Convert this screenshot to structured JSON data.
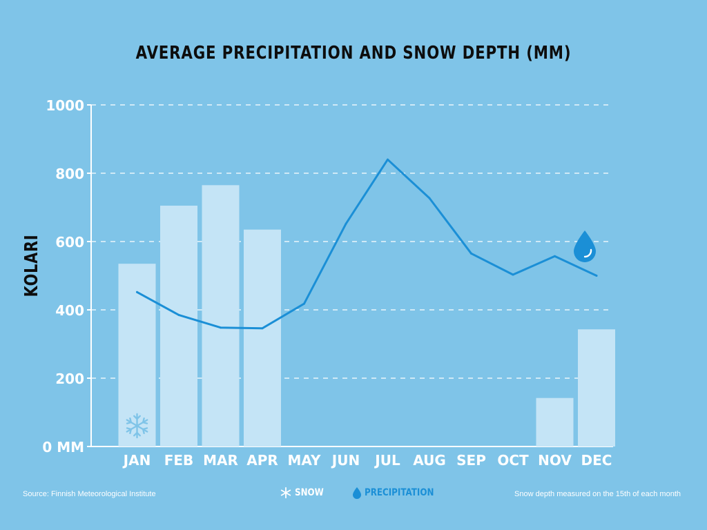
{
  "chart_data": {
    "type": "bar+line",
    "title": "AVERAGE PRECIPITATION AND SNOW DEPTH (MM)",
    "ylabel": "KOLARI",
    "ylim": [
      0,
      1000
    ],
    "yticks": [
      {
        "value": 0,
        "label": "0 MM"
      },
      {
        "value": 200,
        "label": "200"
      },
      {
        "value": 400,
        "label": "400"
      },
      {
        "value": 600,
        "label": "600"
      },
      {
        "value": 800,
        "label": "800"
      },
      {
        "value": 1000,
        "label": "1000"
      }
    ],
    "categories": [
      "JAN",
      "FEB",
      "MAR",
      "APR",
      "MAY",
      "JUN",
      "JUL",
      "AUG",
      "SEP",
      "OCT",
      "NOV",
      "DEC"
    ],
    "series": [
      {
        "name": "SNOW",
        "kind": "bar",
        "color": "#c4e4f6",
        "values": [
          535,
          705,
          765,
          635,
          0,
          0,
          0,
          0,
          0,
          0,
          142,
          343
        ]
      },
      {
        "name": "PRECIPITATION",
        "kind": "line",
        "color": "#1b8fd6",
        "values": [
          452,
          385,
          348,
          346,
          418,
          652,
          840,
          727,
          565,
          503,
          557,
          500
        ]
      }
    ],
    "grid": true
  },
  "legend": {
    "snow_label": "SNOW",
    "precip_label": "PRECIPITATION"
  },
  "footer": {
    "source": "Source: Finnish Meteorological Institute",
    "note": "Snow depth measured on the 15th of each month"
  },
  "colors": {
    "background": "#7fc4e8",
    "bar": "#c4e4f6",
    "line": "#1b8fd6",
    "text": "#ffffff"
  },
  "icons": {
    "snow": "snowflake-icon",
    "precipitation": "water-drop-icon"
  }
}
